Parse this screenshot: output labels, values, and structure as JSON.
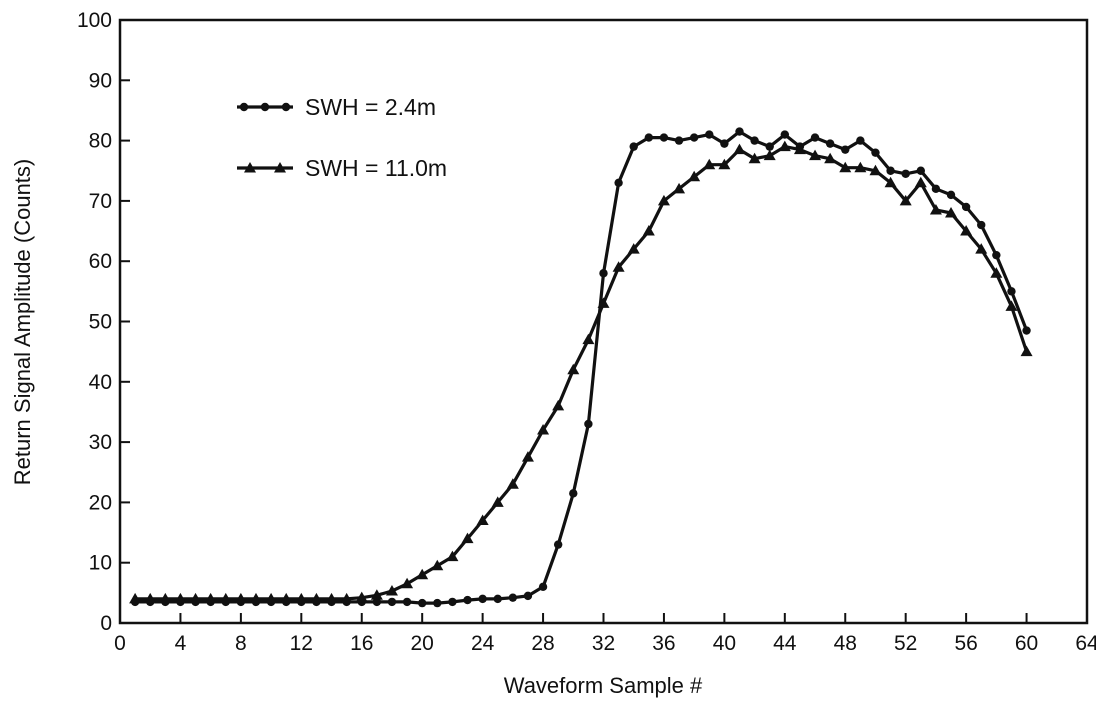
{
  "chart_data": {
    "type": "line",
    "xlabel": "Waveform Sample #",
    "ylabel": "Return Signal Amplitude (Counts)",
    "xlim": [
      0,
      64
    ],
    "ylim": [
      0,
      100
    ],
    "xticks": [
      0,
      4,
      8,
      12,
      16,
      20,
      24,
      28,
      32,
      36,
      40,
      44,
      48,
      52,
      56,
      60,
      64
    ],
    "yticks": [
      0,
      10,
      20,
      30,
      40,
      50,
      60,
      70,
      80,
      90,
      100
    ],
    "grid": false,
    "legend_position": "top-left",
    "series": [
      {
        "name": "SWH = 2.4m",
        "marker": "circle",
        "x": [
          1,
          2,
          3,
          4,
          5,
          6,
          7,
          8,
          9,
          10,
          11,
          12,
          13,
          14,
          15,
          16,
          17,
          18,
          19,
          20,
          21,
          22,
          23,
          24,
          25,
          26,
          27,
          28,
          29,
          30,
          31,
          32,
          33,
          34,
          35,
          36,
          37,
          38,
          39,
          40,
          41,
          42,
          43,
          44,
          45,
          46,
          47,
          48,
          49,
          50,
          51,
          52,
          53,
          54,
          55,
          56,
          57,
          58,
          59,
          60
        ],
        "y": [
          3.5,
          3.5,
          3.5,
          3.5,
          3.5,
          3.5,
          3.5,
          3.5,
          3.5,
          3.5,
          3.5,
          3.5,
          3.5,
          3.5,
          3.5,
          3.5,
          3.5,
          3.5,
          3.5,
          3.3,
          3.3,
          3.5,
          3.8,
          4,
          4,
          4.2,
          4.5,
          6,
          13,
          21.5,
          33,
          58,
          73,
          79,
          80.5,
          80.5,
          80,
          80.5,
          81,
          79.5,
          81.5,
          80,
          79,
          81,
          79,
          80.5,
          79.5,
          78.5,
          80,
          78,
          75,
          74.5,
          75,
          72,
          71,
          69,
          66,
          61,
          55,
          48.5
        ]
      },
      {
        "name": "SWH = 11.0m",
        "marker": "triangle",
        "x": [
          1,
          2,
          3,
          4,
          5,
          6,
          7,
          8,
          9,
          10,
          11,
          12,
          13,
          14,
          15,
          16,
          17,
          18,
          19,
          20,
          21,
          22,
          23,
          24,
          25,
          26,
          27,
          28,
          29,
          30,
          31,
          32,
          33,
          34,
          35,
          36,
          37,
          38,
          39,
          40,
          41,
          42,
          43,
          44,
          45,
          46,
          47,
          48,
          49,
          50,
          51,
          52,
          53,
          54,
          55,
          56,
          57,
          58,
          59,
          60
        ],
        "y": [
          4,
          4,
          4,
          4,
          4,
          4,
          4,
          4,
          4,
          4,
          4,
          4,
          4,
          4,
          4,
          4.2,
          4.6,
          5.3,
          6.5,
          8,
          9.5,
          11,
          14,
          17,
          20,
          23,
          27.5,
          32,
          36,
          42,
          47,
          53,
          59,
          62,
          65,
          70,
          72,
          74,
          76,
          76,
          78.5,
          77,
          77.5,
          79,
          78.5,
          77.5,
          77,
          75.5,
          75.5,
          75,
          73,
          70,
          73,
          68.5,
          68,
          65,
          62,
          58,
          52.5,
          45
        ]
      }
    ]
  }
}
